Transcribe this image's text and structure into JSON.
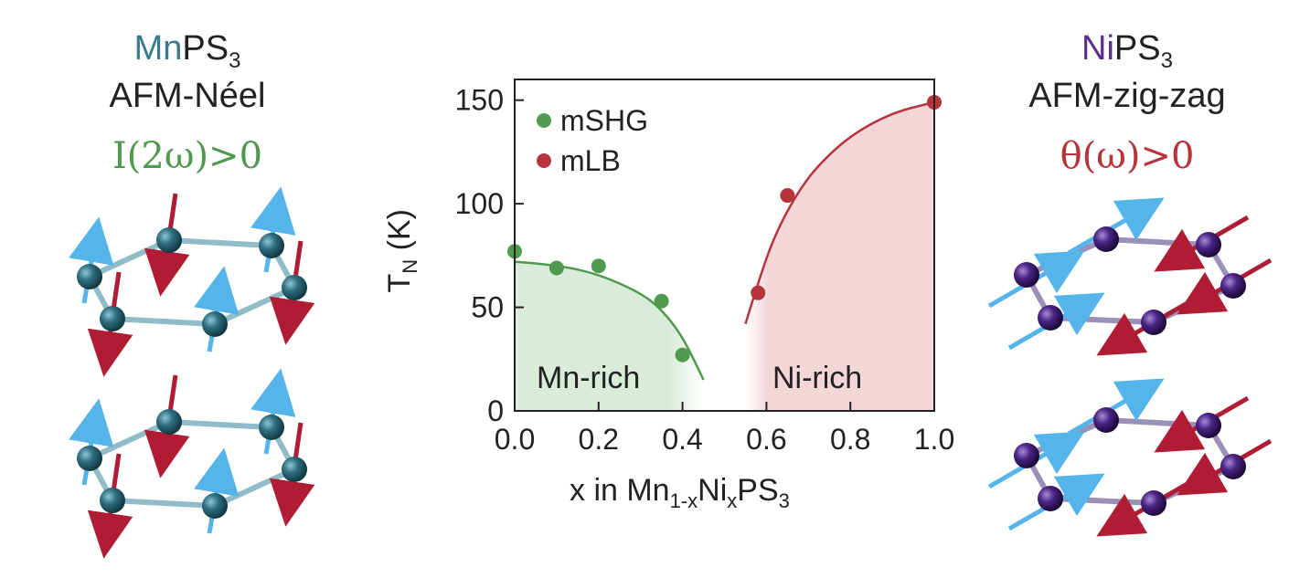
{
  "left_panel": {
    "compound_metal": "Mn",
    "compound_rest": "PS",
    "compound_sub": "3",
    "order": "AFM-Néel",
    "condition": "I(2ω)>0",
    "metal_color": "#3a7a8c",
    "condition_color": "#4f9a4f"
  },
  "right_panel": {
    "compound_metal": "Ni",
    "compound_rest": "PS",
    "compound_sub": "3",
    "order": "AFM-zig-zag",
    "condition": "θ(ω)>0",
    "metal_color": "#5a2d8c",
    "condition_color": "#b8343c"
  },
  "chart_data": {
    "type": "scatter",
    "xlabel_parts": [
      "x in Mn",
      "1-x",
      "Ni",
      "x",
      "PS",
      "3"
    ],
    "ylabel_main": "T",
    "ylabel_sub": "N",
    "ylabel_unit": " (K)",
    "xlim": [
      0,
      1.0
    ],
    "ylim": [
      0,
      160
    ],
    "xticks": [
      0.0,
      0.2,
      0.4,
      0.6,
      0.8,
      1.0
    ],
    "xtick_labels": [
      "0.0",
      "0.2",
      "0.4",
      "0.6",
      "0.8",
      "1.0"
    ],
    "yticks": [
      0,
      50,
      100,
      150
    ],
    "ytick_labels": [
      "0",
      "50",
      "100",
      "150"
    ],
    "legend_position": "top-left",
    "series": [
      {
        "name": "mSHG",
        "color": "#4f9a4f",
        "x": [
          0.0,
          0.1,
          0.2,
          0.35,
          0.4
        ],
        "y": [
          77,
          69,
          70,
          53,
          27
        ],
        "fit_x": [
          0.0,
          0.1,
          0.2,
          0.3,
          0.35,
          0.4,
          0.45
        ],
        "fit_y": [
          72,
          70.5,
          66,
          57,
          49,
          36,
          15
        ]
      },
      {
        "name": "mLB",
        "color": "#b8343c",
        "x": [
          0.58,
          0.65,
          1.0
        ],
        "y": [
          57,
          104,
          149
        ],
        "fit_x": [
          0.55,
          0.58,
          0.62,
          0.67,
          0.72,
          0.8,
          0.9,
          1.0
        ],
        "fit_y": [
          42,
          62,
          85,
          104,
          118,
          133,
          144,
          149
        ]
      }
    ],
    "regions": [
      {
        "label": "Mn-rich",
        "color": "#d9ecd9"
      },
      {
        "label": "Ni-rich",
        "color": "#f2d6d8"
      }
    ]
  }
}
